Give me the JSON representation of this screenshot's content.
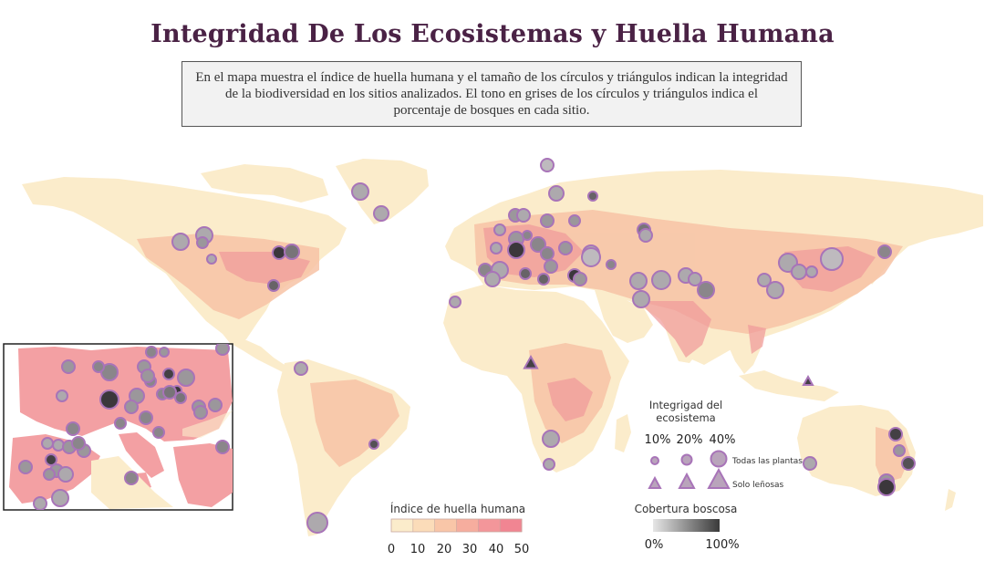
{
  "title": "Integridad De Los Ecosistemas y Huella Humana",
  "description": "En el mapa muestra el índice de huella humana y el tamaño de los círculos y triángulos indican la integridad de la biodiversidad en los sitios analizados. El tono en grises de los círculos y triángulos indica el porcentaje de bosques en cada sitio.",
  "integrity_legend": {
    "title_line1": "Integrigad del",
    "title_line2": "ecosistema",
    "sizes": [
      "10%",
      "20%",
      "40%"
    ],
    "all_plants": "Todas las plantas",
    "woody_only": "Solo leñosas"
  },
  "footprint_legend": {
    "title": "Índice de huella humana",
    "ticks": [
      "0",
      "10",
      "20",
      "30",
      "40",
      "50"
    ],
    "colors": [
      "#fbeccb",
      "#fbdcb9",
      "#f9c6a8",
      "#f6ad9e",
      "#f3969a",
      "#f18592"
    ]
  },
  "forest_legend": {
    "title": "Cobertura boscosa",
    "min_label": "0%",
    "max_label": "100%",
    "color_min": "#e6e6e6",
    "color_max": "#3a3a3a"
  },
  "colors": {
    "land_low": "#fbeccb",
    "land_mid": "#f8cfae",
    "land_high": "#f29c9a",
    "marker_stroke": "#a874b8",
    "title": "#4a2245"
  }
}
